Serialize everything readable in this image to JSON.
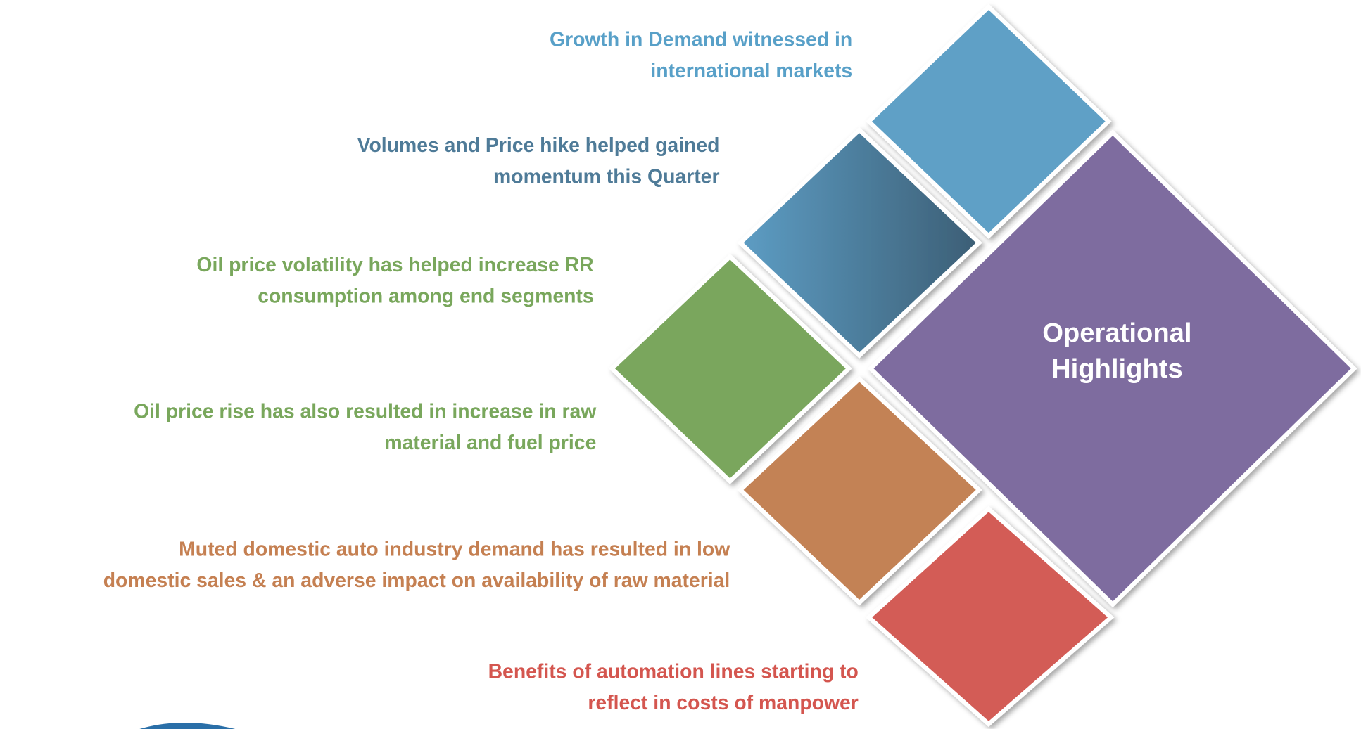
{
  "center": {
    "lines": [
      "Operational",
      "Highlights"
    ]
  },
  "items": [
    {
      "lines": [
        "Growth in Demand witnessed in",
        "international markets"
      ],
      "color": "#58a0c8"
    },
    {
      "lines": [
        "Volumes and Price hike helped gained",
        "momentum this Quarter"
      ],
      "color": "#4f7b98"
    },
    {
      "lines": [
        "Oil price volatility has helped increase RR",
        "consumption among end segments"
      ],
      "color": "#79a75c"
    },
    {
      "lines": [
        "Oil price rise has also resulted in increase in raw",
        "material and fuel price"
      ],
      "color": "#79a75c"
    },
    {
      "lines": [
        "Muted domestic auto industry demand has resulted in low",
        "domestic sales & an adverse impact on availability of raw material"
      ],
      "color": "#c58052"
    },
    {
      "lines": [
        "Benefits of automation lines starting to",
        "reflect in costs of manpower"
      ],
      "color": "#d4564f"
    }
  ]
}
